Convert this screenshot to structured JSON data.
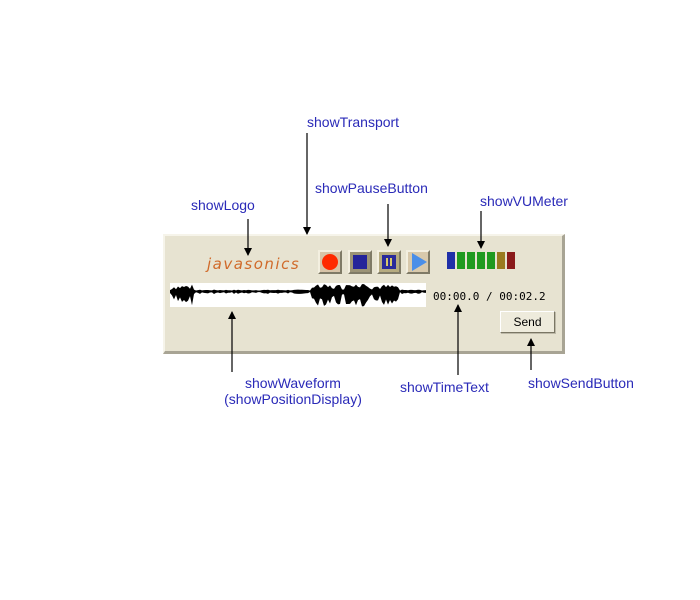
{
  "labels": {
    "transport": "showTransport",
    "pause_button": "showPauseButton",
    "logo": "showLogo",
    "vu_meter": "showVUMeter",
    "waveform_line1": "showWaveform",
    "waveform_line2": "(showPositionDisplay)",
    "time_text": "showTimeText",
    "send_button": "showSendButton"
  },
  "applet": {
    "logo_text": "javasonics",
    "time_text": "00:00.0 / 00:02.2",
    "send_label": "Send",
    "vu_colors": [
      "#1f2fa8",
      "#1f9a1f",
      "#1f9a1f",
      "#1f9a1f",
      "#1f9a1f",
      "#9a7a1f",
      "#8a1a1a"
    ]
  },
  "colors": {
    "label_text": "#2a2ab8",
    "panel_bg": "#e7e3d1",
    "logo": "#d06a2a"
  }
}
